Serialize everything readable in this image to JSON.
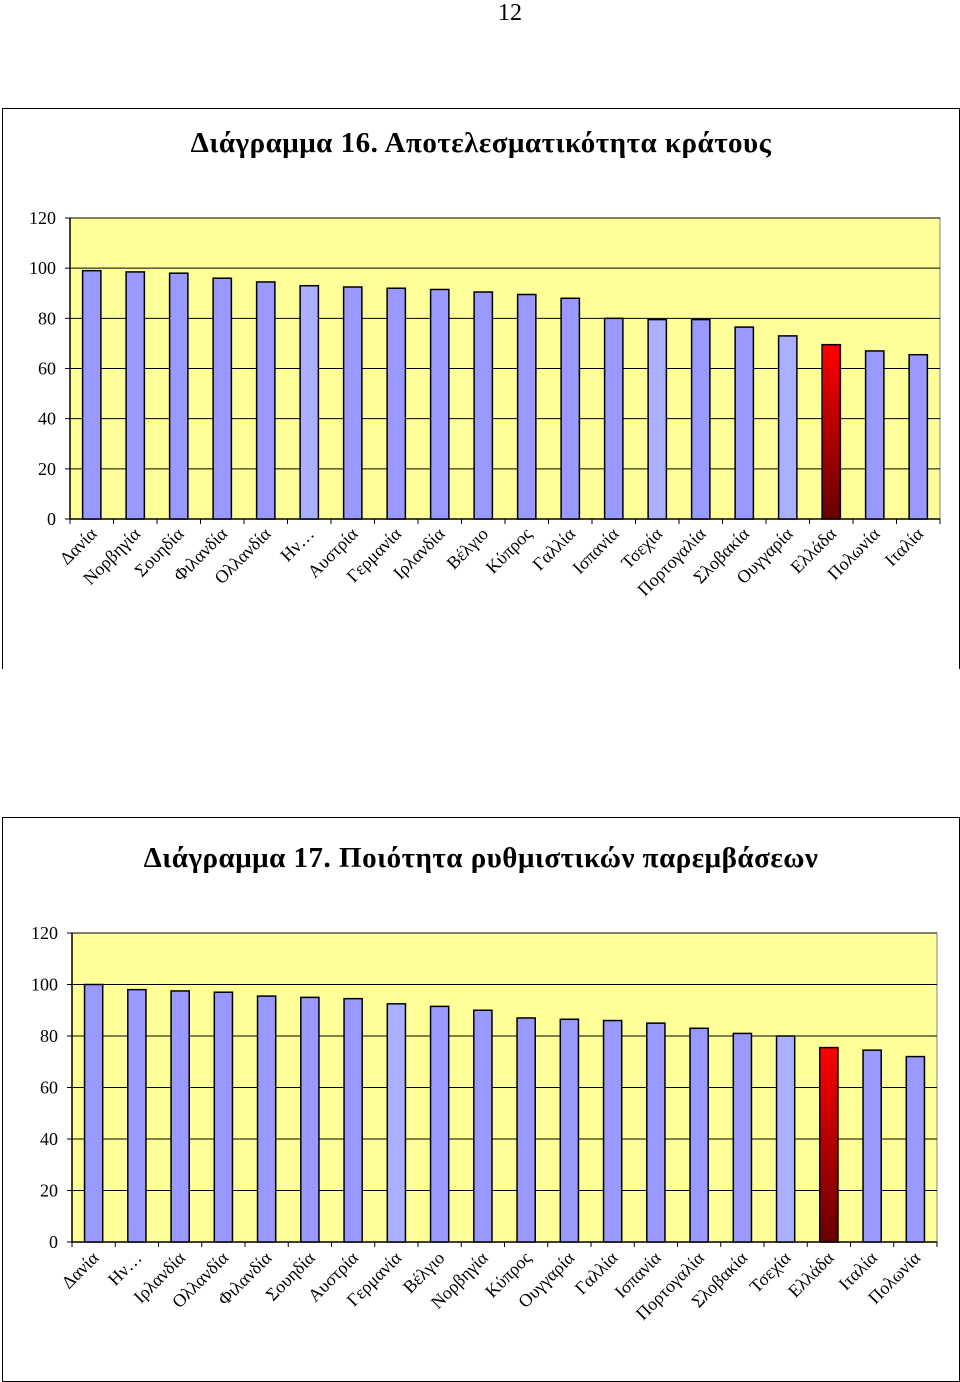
{
  "page_number": "12",
  "colors": {
    "plot_background": "#ffff99",
    "bar_default": "#9999ff",
    "bar_light": "#aab0ff",
    "bar_highlight_top": "#ff0000",
    "bar_highlight_bottom": "#660000",
    "bar_outline": "#000000"
  },
  "chart_data": [
    {
      "type": "bar",
      "title": "Διάγραμμα 16. Αποτελεσματικότητα κράτους",
      "ylim": [
        0,
        120
      ],
      "yticks": [
        "0",
        "20",
        "40",
        "60",
        "80",
        "100",
        "120"
      ],
      "grid": true,
      "categories": [
        "Δανία",
        "Νορβηγία",
        "Σουηδία",
        "Φιλανδία",
        "Ολλανδία",
        "Ην…",
        "Αυστρία",
        "Γερμανία",
        "Ιρλανδία",
        "Βέλγιο",
        "Κύπρος",
        "Γαλλία",
        "Ισπανία",
        "Τσεχία",
        "Πορτογαλία",
        "Σλοβακία",
        "Ουγγαρία",
        "Ελλάδα",
        "Πολωνία",
        "Ιταλία"
      ],
      "values": [
        99,
        98.5,
        98,
        96,
        94.5,
        93,
        92.5,
        92,
        91.5,
        90.5,
        89.5,
        88,
        80,
        79.5,
        79.5,
        76.5,
        73,
        69.5,
        67,
        65.5
      ],
      "highlight": "Ελλάδα",
      "lighter_bars": [
        "Ην…",
        "Τσεχία",
        "Ουγγαρία"
      ]
    },
    {
      "type": "bar",
      "title": "Διάγραμμα 17. Ποιότητα ρυθμιστικών παρεμβάσεων",
      "ylim": [
        0,
        120
      ],
      "yticks": [
        "0",
        "20",
        "40",
        "60",
        "80",
        "100",
        "120"
      ],
      "grid": true,
      "categories": [
        "Δανία",
        "Ην…",
        "Ιρλανδία",
        "Ολλανδία",
        "Φιλανδία",
        "Σουηδία",
        "Αυστρία",
        "Γερμανία",
        "Βέλγιο",
        "Νορβηγία",
        "Κύπρος",
        "Ουγγαρία",
        "Γαλλία",
        "Ισπανία",
        "Πορτογαλία",
        "Σλοβακία",
        "Τσεχία",
        "Ελλάδα",
        "Ιταλία",
        "Πολωνία"
      ],
      "values": [
        100,
        98,
        97.5,
        97,
        95.5,
        95,
        94.5,
        92.5,
        91.5,
        90,
        87,
        86.5,
        86,
        85,
        83,
        81,
        80,
        75.5,
        74.5,
        72
      ],
      "highlight": "Ελλάδα",
      "lighter_bars": [
        "Γερμανία",
        "Τσεχία"
      ]
    }
  ]
}
